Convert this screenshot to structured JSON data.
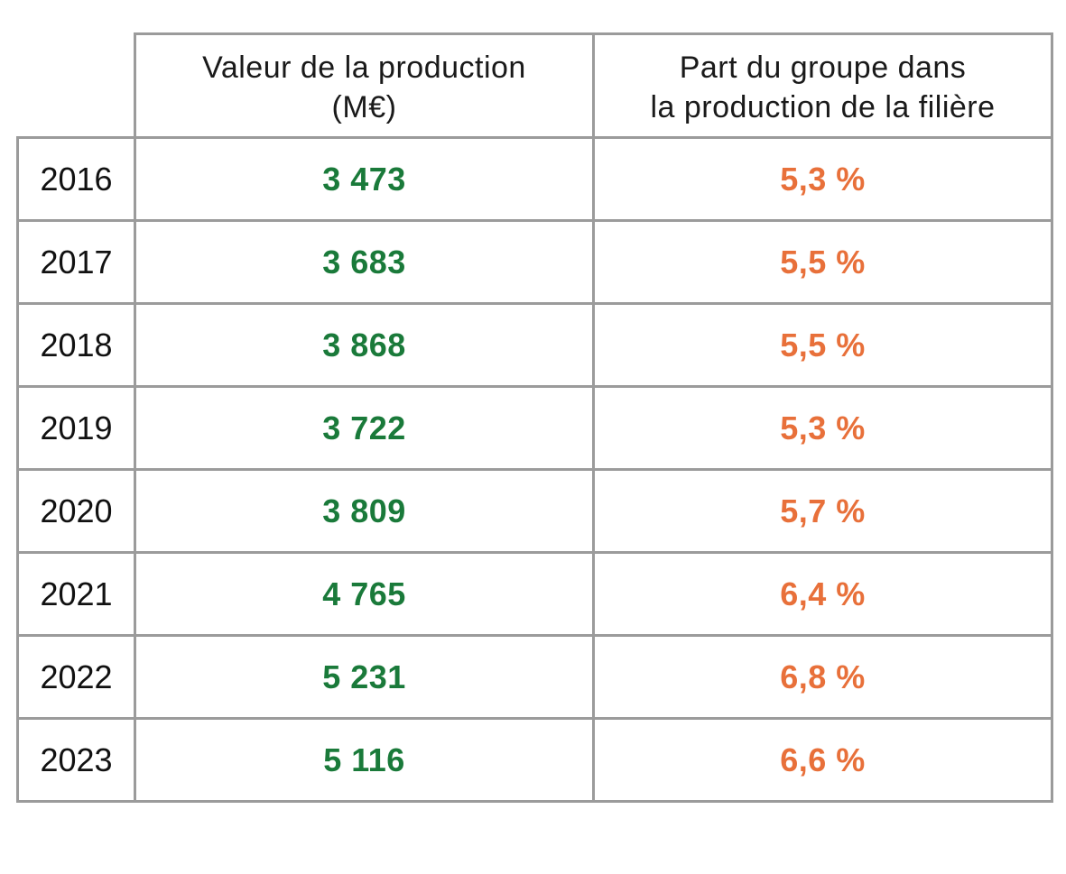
{
  "chart_data": {
    "type": "table",
    "columns": [
      "",
      "Valeur de la production\n(M€)",
      "Part du groupe dans\nla production de la filière"
    ],
    "rows": [
      {
        "year": "2016",
        "value": "3 473",
        "share": "5,3 %"
      },
      {
        "year": "2017",
        "value": "3 683",
        "share": "5,5 %"
      },
      {
        "year": "2018",
        "value": "3 868",
        "share": "5,5 %"
      },
      {
        "year": "2019",
        "value": "3 722",
        "share": "5,3 %"
      },
      {
        "year": "2020",
        "value": "3 809",
        "share": "5,7 %"
      },
      {
        "year": "2021",
        "value": "4 765",
        "share": "6,4 %"
      },
      {
        "year": "2022",
        "value": "5 231",
        "share": "6,8 %"
      },
      {
        "year": "2023",
        "value": "5 116",
        "share": "6,6 %"
      }
    ]
  },
  "colors": {
    "value": "#1a7a3a",
    "share": "#e8703a",
    "border": "#9b9b9b"
  }
}
